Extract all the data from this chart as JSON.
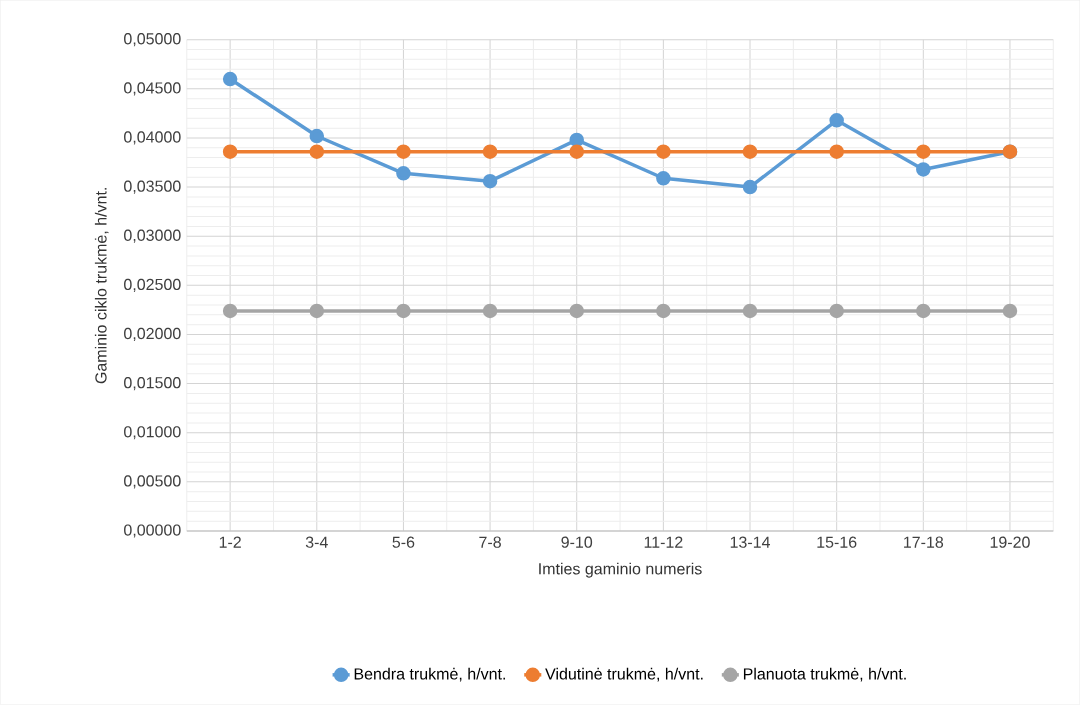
{
  "chart_data": {
    "type": "line",
    "xlabel": "Imties gaminio numeris",
    "ylabel": "Gaminio ciklo trukmė, h/vnt.",
    "categories": [
      "1-2",
      "3-4",
      "5-6",
      "7-8",
      "9-10",
      "11-12",
      "13-14",
      "15-16",
      "17-18",
      "19-20"
    ],
    "series": [
      {
        "name": "Bendra trukmė, h/vnt.",
        "color": "#5b9bd5",
        "values": [
          0.046,
          0.0402,
          0.0364,
          0.0356,
          0.0398,
          0.0359,
          0.035,
          0.0418,
          0.0368,
          0.0386
        ]
      },
      {
        "name": "Vidutinė trukmė, h/vnt.",
        "color": "#ed7d31",
        "values": [
          0.0386,
          0.0386,
          0.0386,
          0.0386,
          0.0386,
          0.0386,
          0.0386,
          0.0386,
          0.0386,
          0.0386
        ]
      },
      {
        "name": "Planuota trukmė, h/vnt.",
        "color": "#a5a5a5",
        "values": [
          0.0224,
          0.0224,
          0.0224,
          0.0224,
          0.0224,
          0.0224,
          0.0224,
          0.0224,
          0.0224,
          0.0224
        ]
      }
    ],
    "ylim": [
      0,
      0.05
    ],
    "yticks": [
      {
        "value": 0,
        "label": "0,00000"
      },
      {
        "value": 0.005,
        "label": "0,00500"
      },
      {
        "value": 0.01,
        "label": "0,01000"
      },
      {
        "value": 0.015,
        "label": "0,01500"
      },
      {
        "value": 0.02,
        "label": "0,02000"
      },
      {
        "value": 0.025,
        "label": "0,02500"
      },
      {
        "value": 0.03,
        "label": "0,03000"
      },
      {
        "value": 0.035,
        "label": "0,03500"
      },
      {
        "value": 0.04,
        "label": "0,04000"
      },
      {
        "value": 0.045,
        "label": "0,04500"
      },
      {
        "value": 0.05,
        "label": "0,05000"
      }
    ],
    "grid": true,
    "legend": "bottom",
    "marker": "circle",
    "line_style": "solid"
  }
}
